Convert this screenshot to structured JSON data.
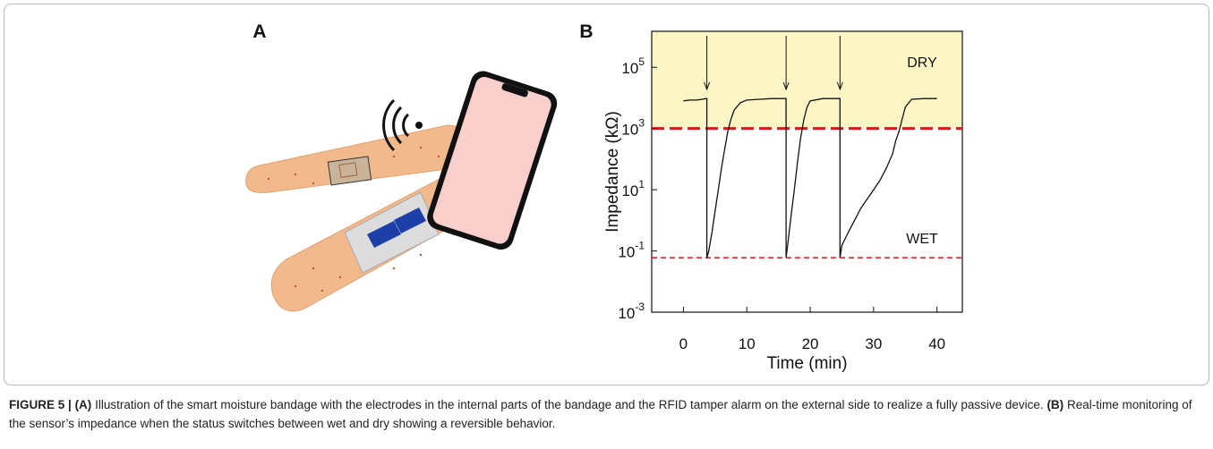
{
  "panels": [
    "A",
    "B"
  ],
  "caption": {
    "figure": "FIGURE 5 |",
    "a_tag": "(A)",
    "a_text": "Illustration of the smart moisture bandage with the electrodes in the internal parts of the bandage and the RFID tamper alarm on the external side to realize a fully passive device.",
    "b_tag": "(B)",
    "b_text": "Real-time monitoring of the sensor’s impedance when the status switches between wet and dry showing a reversible behavior."
  },
  "chart_data": {
    "type": "line",
    "xlabel": "Time (min)",
    "ylabel": "Impedance (kΩ)",
    "log_y": true,
    "color": "#111111",
    "x": [
      0,
      1,
      2,
      3,
      3.5,
      3.7,
      3.7,
      4,
      4.5,
      5,
      5.5,
      6,
      6.5,
      7,
      7.5,
      8,
      9,
      10,
      12,
      14,
      16,
      16.2,
      16.2,
      16.5,
      17,
      17.5,
      18,
      18.5,
      19,
      19.5,
      20,
      22,
      24.5,
      24.7,
      24.7,
      25,
      26,
      27,
      28,
      29,
      30,
      31,
      32,
      33,
      33.5,
      34,
      34.5,
      35,
      36,
      38,
      40
    ],
    "values": [
      8000,
      8500,
      8500,
      9000,
      9500,
      9500,
      0.06,
      0.1,
      0.4,
      2,
      10,
      50,
      200,
      800,
      2000,
      4000,
      7000,
      8500,
      9000,
      9500,
      9500,
      9500,
      0.06,
      0.2,
      1.5,
      10,
      80,
      500,
      2000,
      5000,
      8000,
      9500,
      9500,
      9500,
      0.06,
      0.15,
      0.4,
      1,
      2.5,
      5,
      10,
      20,
      50,
      150,
      400,
      800,
      2000,
      5000,
      9000,
      9500,
      9500
    ],
    "events": [
      3.7,
      16.2,
      24.7
    ],
    "dry_label": "DRY",
    "wet_label": "WET",
    "dry_color": "#fdf5c6",
    "thresholds": [
      1000,
      0.06
    ],
    "threshold_color": "#d7191c",
    "xlim": [
      -5,
      44
    ],
    "ylim": [
      0.001,
      1500000
    ],
    "xticks": [
      0,
      10,
      20,
      30,
      40
    ],
    "yticks": [
      {
        "value": 0.001,
        "label": "10^-3"
      },
      {
        "value": 0.1,
        "label": "10^-1"
      },
      {
        "value": 10,
        "label": "10^1"
      },
      {
        "value": 1000,
        "label": "10^3"
      },
      {
        "value": 100000,
        "label": "10^5"
      }
    ]
  }
}
